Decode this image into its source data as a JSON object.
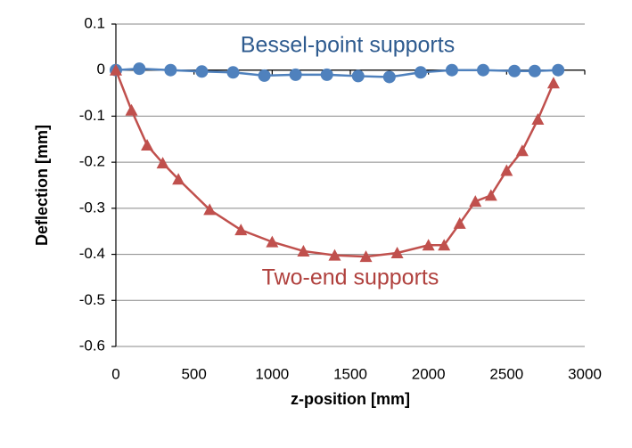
{
  "chart_data": {
    "type": "line",
    "xlabel": "z-position [mm]",
    "ylabel": "Deflection [mm]",
    "annotations": [
      "Bessel-point supports",
      "Two-end supports"
    ],
    "xlim": [
      0,
      3000
    ],
    "xticks": [
      0,
      500,
      1000,
      1500,
      2000,
      2500,
      3000
    ],
    "ylim": [
      -0.6,
      0.1
    ],
    "yticks": [
      -0.6,
      -0.5,
      -0.4,
      -0.3,
      -0.2,
      -0.1,
      0,
      0.1
    ],
    "grid": true,
    "series": [
      {
        "name": "Bessel-point supports",
        "color": "#4f81bd",
        "marker": "circle",
        "x": [
          0,
          150,
          350,
          550,
          750,
          950,
          1150,
          1350,
          1550,
          1750,
          1950,
          2150,
          2350,
          2550,
          2680,
          2830
        ],
        "values": [
          0,
          0.003,
          0,
          -0.003,
          -0.005,
          -0.012,
          -0.01,
          -0.01,
          -0.013,
          -0.015,
          -0.005,
          0,
          0,
          -0.002,
          -0.002,
          0
        ]
      },
      {
        "name": "Two-end supports",
        "color": "#c0504d",
        "marker": "triangle",
        "x": [
          0,
          100,
          200,
          300,
          400,
          600,
          800,
          1000,
          1200,
          1400,
          1600,
          1800,
          2000,
          2100,
          2200,
          2300,
          2400,
          2500,
          2600,
          2700,
          2800
        ],
        "values": [
          0,
          -0.087,
          -0.163,
          -0.202,
          -0.237,
          -0.303,
          -0.347,
          -0.373,
          -0.393,
          -0.402,
          -0.405,
          -0.397,
          -0.38,
          -0.38,
          -0.333,
          -0.285,
          -0.272,
          -0.218,
          -0.175,
          -0.107,
          -0.028
        ]
      }
    ]
  }
}
